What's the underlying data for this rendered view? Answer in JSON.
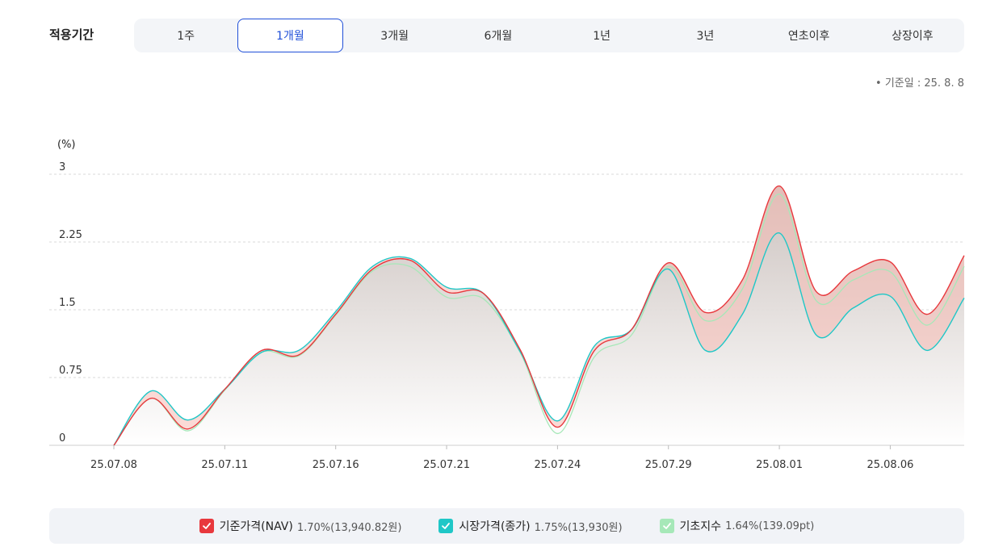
{
  "period": {
    "label": "적용기간",
    "tabs": [
      "1주",
      "1개월",
      "3개월",
      "6개월",
      "1년",
      "3년",
      "연초이후",
      "상장이후"
    ],
    "active_index": 1
  },
  "base_date": "• 기준일 : 25. 8. 8",
  "chart_data": {
    "type": "area",
    "unit_label": "(%)",
    "ylim": [
      0,
      3
    ],
    "yticks": [
      "3",
      "2.25",
      "1.5",
      "0.75",
      "0"
    ],
    "ytick_values": [
      3,
      2.25,
      1.5,
      0.75,
      0
    ],
    "xtick_labels": [
      "25.07.08",
      "25.07.11",
      "25.07.16",
      "25.07.21",
      "25.07.24",
      "25.07.29",
      "25.08.01",
      "25.08.06"
    ],
    "x": [
      "25.07.08",
      "25.07.09",
      "25.07.10",
      "25.07.11",
      "25.07.14",
      "25.07.15",
      "25.07.16",
      "25.07.17",
      "25.07.18",
      "25.07.21",
      "25.07.22",
      "25.07.23",
      "25.07.24",
      "25.07.25",
      "25.07.28",
      "25.07.29",
      "25.07.30",
      "25.07.31",
      "25.08.01",
      "25.08.04",
      "25.08.05",
      "25.08.06",
      "25.08.07",
      "25.08.08"
    ],
    "series": [
      {
        "name": "기준가격(NAV)",
        "color": "#e8383d",
        "values": [
          0,
          0.52,
          0.18,
          0.62,
          1.05,
          1.0,
          1.45,
          1.95,
          2.05,
          1.7,
          1.68,
          1.05,
          0.2,
          1.05,
          1.28,
          2.02,
          1.47,
          1.83,
          2.87,
          1.7,
          1.93,
          2.03,
          1.45,
          2.1
        ]
      },
      {
        "name": "시장가격(종가)",
        "color": "#1fc7c7",
        "values": [
          0,
          0.6,
          0.28,
          0.62,
          1.03,
          1.05,
          1.48,
          1.98,
          2.07,
          1.75,
          1.68,
          1.03,
          0.27,
          1.1,
          1.28,
          1.95,
          1.05,
          1.45,
          2.35,
          1.22,
          1.52,
          1.65,
          1.05,
          1.63
        ]
      },
      {
        "name": "기초지수",
        "color": "#a6e8b8",
        "values": [
          0,
          0.52,
          0.16,
          0.61,
          1.03,
          0.99,
          1.44,
          1.93,
          1.98,
          1.64,
          1.62,
          1.02,
          0.13,
          0.98,
          1.22,
          1.98,
          1.38,
          1.73,
          2.78,
          1.6,
          1.83,
          1.92,
          1.33,
          1.98
        ]
      }
    ]
  },
  "legend": [
    {
      "name": "기준가격(NAV)",
      "value": "1.70%(13,940.82원)",
      "color": "#e8383d"
    },
    {
      "name": "시장가격(종가)",
      "value": "1.75%(13,930원)",
      "color": "#1fc7c7"
    },
    {
      "name": "기초지수",
      "value": "1.64%(139.09pt)",
      "color": "#a6e8b8"
    }
  ]
}
